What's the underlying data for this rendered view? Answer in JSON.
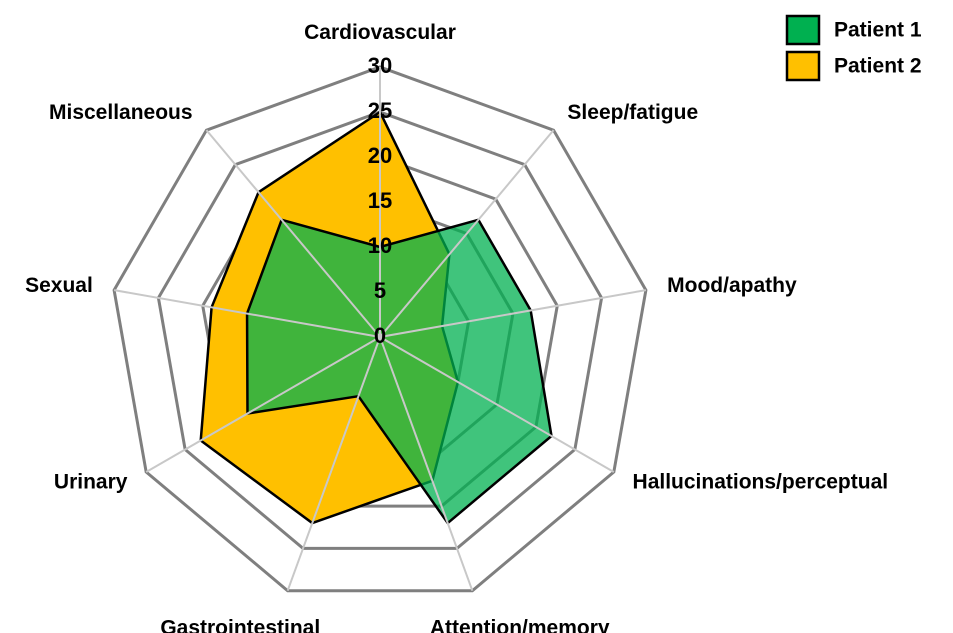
{
  "chart_data": {
    "type": "radar",
    "categories": [
      "Cardiovascular",
      "Sleep/fatigue",
      "Mood/apathy",
      "Hallucinations/perceptual",
      "Attention/memory",
      "Gastrointestinal",
      "Urinary",
      "Sexual",
      "Miscellaneous"
    ],
    "series": [
      {
        "name": "Patient 1",
        "color": "#00b050",
        "values": [
          10,
          17,
          17,
          22,
          22,
          7,
          17,
          15,
          17
        ]
      },
      {
        "name": "Patient 2",
        "color": "#ffc000",
        "values": [
          25,
          12,
          7,
          10,
          17,
          22,
          23,
          19,
          21
        ]
      }
    ],
    "rlim": [
      0,
      30
    ],
    "rticks": [
      0,
      5,
      10,
      15,
      20,
      25,
      30
    ],
    "grid": true,
    "legend": "upper right"
  }
}
